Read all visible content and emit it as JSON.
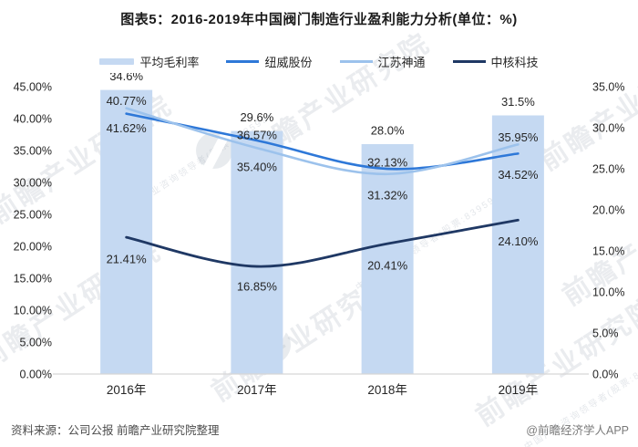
{
  "title": "图表5：2016-2019年中国阀门制造行业盈利能力分析(单位：%)",
  "footer": {
    "source": "资料来源：公司公报 前瞻产业研究院整理",
    "credit": "@前瞻经济学人APP"
  },
  "watermark": {
    "text": "前瞻产业研究院",
    "subtext": "中国产业咨询领导者(股票:839599)"
  },
  "chart_data": {
    "type": "bar+line combo",
    "categories": [
      "2016年",
      "2017年",
      "2018年",
      "2019年"
    ],
    "bar_series": {
      "name": "平均毛利率",
      "axis": "right",
      "values": [
        34.6,
        29.6,
        28.0,
        31.5
      ],
      "labels": [
        "34.6%",
        "29.6%",
        "28.0%",
        "31.5%"
      ],
      "color": "#C5D9F2",
      "label_color": "#262626"
    },
    "line_series": [
      {
        "name": "纽威股份",
        "axis": "left",
        "values": [
          40.77,
          36.57,
          32.13,
          34.52
        ],
        "labels": [
          "40.77%",
          "36.57%",
          "32.13%",
          "34.52%"
        ],
        "label_dy": [
          -14,
          -6,
          -7,
          23
        ],
        "color": "#2E78D8",
        "width": 2.6
      },
      {
        "name": "江苏神通",
        "axis": "left",
        "values": [
          41.62,
          35.4,
          31.32,
          35.95
        ],
        "labels": [
          "41.62%",
          "35.40%",
          "31.32%",
          "35.95%"
        ],
        "label_dy": [
          22,
          21,
          23,
          -8
        ],
        "color": "#9CC2EC",
        "width": 2.6
      },
      {
        "name": "中核科技",
        "axis": "left",
        "values": [
          21.41,
          16.85,
          20.41,
          24.1
        ],
        "labels": [
          "21.41%",
          "16.85%",
          "20.41%",
          "24.10%"
        ],
        "label_dy": [
          24,
          22,
          24,
          23
        ],
        "color": "#1F3864",
        "width": 2.8
      }
    ],
    "left_axis": {
      "min": 0,
      "max": 45,
      "ticks": [
        "45.00%",
        "40.00%",
        "35.00%",
        "30.00%",
        "25.00%",
        "20.00%",
        "15.00%",
        "10.00%",
        "5.00%",
        "0.00%"
      ]
    },
    "right_axis": {
      "min": 0,
      "max": 35,
      "ticks": [
        "35.0%",
        "30.0%",
        "25.0%",
        "20.0%",
        "15.0%",
        "10.0%",
        "5.0%",
        "0.0%"
      ]
    },
    "grid": false,
    "legend_position": "top",
    "axis_line_color": "#D6D6D6",
    "tick_color": "#262626",
    "label_color": "#262626"
  }
}
